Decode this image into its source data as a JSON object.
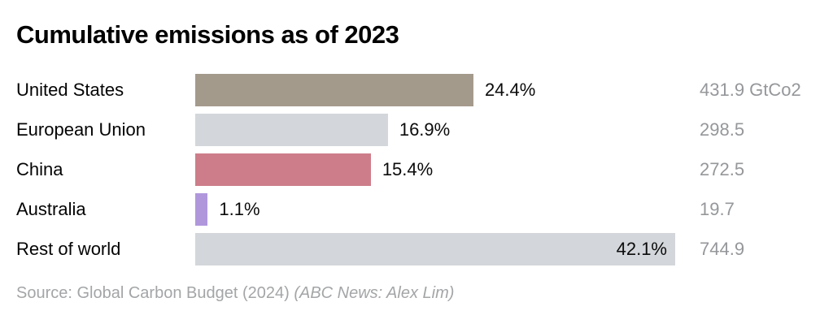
{
  "title": "Cumulative emissions as of 2023",
  "source": {
    "text": "Source: Global Carbon Budget (2024) ",
    "credit": "(ABC News: Alex Lim)"
  },
  "chart_data": {
    "type": "bar",
    "orientation": "horizontal",
    "title": "Cumulative emissions as of 2023",
    "unit": "GtCo2",
    "scale_max_pct": 42.1,
    "grid": false,
    "legend": false,
    "rows": [
      {
        "label": "United States",
        "pct": 24.4,
        "pct_label": "24.4%",
        "value": 431.9,
        "value_label": "431.9 GtCo2",
        "color": "#a49a8c",
        "pct_inside": false
      },
      {
        "label": "European Union",
        "pct": 16.9,
        "pct_label": "16.9%",
        "value": 298.5,
        "value_label": "298.5",
        "color": "#d3d6da",
        "pct_inside": false
      },
      {
        "label": "China",
        "pct": 15.4,
        "pct_label": "15.4%",
        "value": 272.5,
        "value_label": "272.5",
        "color": "#cd7d89",
        "pct_inside": false
      },
      {
        "label": "Australia",
        "pct": 1.1,
        "pct_label": "1.1%",
        "value": 19.7,
        "value_label": "19.7",
        "color": "#b097dc",
        "pct_inside": false
      },
      {
        "label": "Rest of world",
        "pct": 42.1,
        "pct_label": "42.1%",
        "value": 744.9,
        "value_label": "744.9",
        "color": "#d3d6da",
        "pct_inside": true
      }
    ]
  }
}
